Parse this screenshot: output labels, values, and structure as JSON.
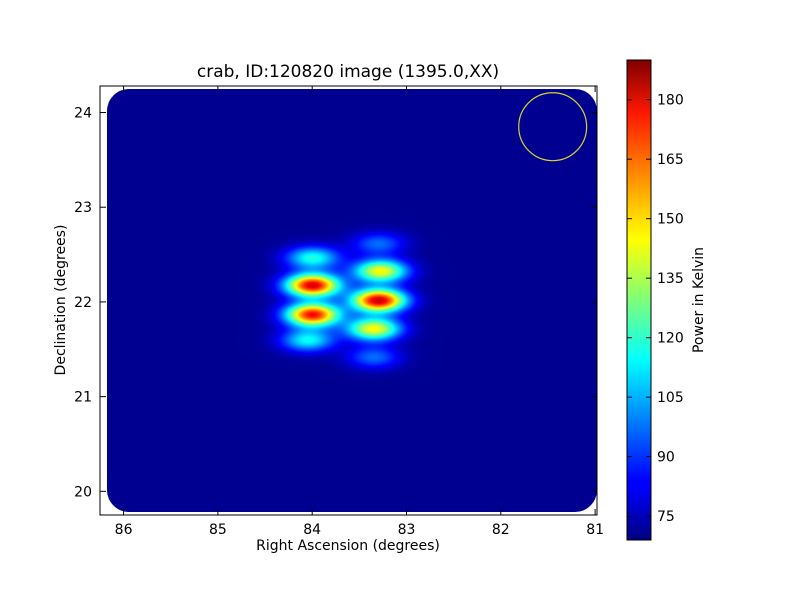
{
  "chart_data": {
    "type": "heatmap",
    "title": "crab, ID:120820 image (1395.0,XX)",
    "xlabel": "Right Ascension (degrees)",
    "ylabel": "Declination (degrees)",
    "xlim": [
      86.25,
      80.98
    ],
    "ylim": [
      19.75,
      24.28
    ],
    "x_ticks": [
      86,
      85,
      84,
      83,
      82,
      81
    ],
    "x_tick_labels": [
      "86",
      "85",
      "84",
      "83",
      "82",
      "81"
    ],
    "y_ticks": [
      20,
      21,
      22,
      23,
      24
    ],
    "y_tick_labels": [
      "20",
      "21",
      "22",
      "23",
      "24"
    ],
    "colormap": "jet",
    "grid": false,
    "colorbar": {
      "label": "Power in Kelvin",
      "range": [
        69,
        190
      ],
      "ticks": [
        75,
        90,
        105,
        120,
        135,
        150,
        165,
        180
      ],
      "tick_labels": [
        "75",
        "90",
        "105",
        "120",
        "135",
        "150",
        "165",
        "180"
      ]
    },
    "background_value": 71,
    "blobs": [
      {
        "ra": 84.0,
        "dec": 22.18,
        "peak": 180
      },
      {
        "ra": 84.0,
        "dec": 21.87,
        "peak": 175
      },
      {
        "ra": 83.3,
        "dec": 22.02,
        "peak": 182
      },
      {
        "ra": 83.28,
        "dec": 22.33,
        "peak": 145
      },
      {
        "ra": 83.35,
        "dec": 21.72,
        "peak": 145
      },
      {
        "ra": 84.0,
        "dec": 22.47,
        "peak": 118
      },
      {
        "ra": 84.05,
        "dec": 21.6,
        "peak": 115
      },
      {
        "ra": 83.3,
        "dec": 22.62,
        "peak": 97
      },
      {
        "ra": 83.35,
        "dec": 21.42,
        "peak": 97
      }
    ],
    "beam_circle": {
      "ra": 81.45,
      "dec": 23.85,
      "radius_deg": 0.36,
      "color": "#d8d230"
    }
  }
}
